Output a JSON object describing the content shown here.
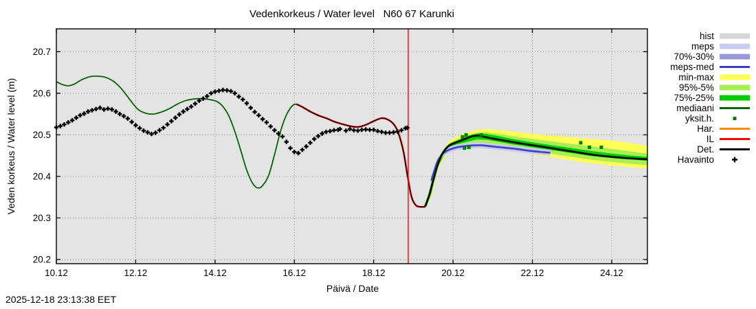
{
  "meta": {
    "timestamp": "2025-12-18 23:13:38 EET"
  },
  "chart_data": {
    "type": "line",
    "title": "Vedenkorkeus / Water level   N60 67 Karunki",
    "xlabel": "Päivä / Date",
    "ylabel": "Veden korkeus / Water level (m)",
    "x_tick_labels": [
      "10.12",
      "12.12",
      "14.12",
      "16.12",
      "18.12",
      "20.12",
      "22.12",
      "24.12"
    ],
    "x_tick_days": [
      0,
      2,
      4,
      6,
      8,
      10,
      12,
      14
    ],
    "x_range_days": [
      0,
      14.9
    ],
    "y_ticks": [
      20.2,
      20.3,
      20.4,
      20.5,
      20.6,
      20.7
    ],
    "ylim": [
      20.19,
      20.755
    ],
    "grid": true,
    "legend_position": "right",
    "now_line_day": 8.87,
    "colors": {
      "plot_bg": "#e4e4e4",
      "grid": "#a6a6a6",
      "border": "#000000",
      "now_line": "#ff0000",
      "hist": "#d6d6d6",
      "meps_band": "#ccccf0",
      "p70_30_band": "#9999d9",
      "meps_med": "#3c3cc8",
      "minmax_band": "#ffff55",
      "p95_5_band": "#a8ee55",
      "p75_25_band": "#00cc00",
      "mediaani": "#006400",
      "yksith": "#008000",
      "har": "#ff8c00",
      "il": "#ff0000",
      "det": "#000000",
      "havainto": "#000000"
    },
    "legend": [
      {
        "label": "hist",
        "kind": "band",
        "color": "#d6d6d6"
      },
      {
        "label": "meps",
        "kind": "band",
        "color": "#ccccf0"
      },
      {
        "label": "70%-30%",
        "kind": "band",
        "color": "#9999d9"
      },
      {
        "label": "meps-med",
        "kind": "line",
        "color": "#3c3cc8"
      },
      {
        "label": "min-max",
        "kind": "band",
        "color": "#ffff55"
      },
      {
        "label": "95%-5%",
        "kind": "band",
        "color": "#a8ee55"
      },
      {
        "label": "75%-25%",
        "kind": "band",
        "color": "#00cc00"
      },
      {
        "label": "mediaani",
        "kind": "line",
        "color": "#006400"
      },
      {
        "label": "yksit.h.",
        "kind": "square",
        "color": "#008000"
      },
      {
        "label": "Har.",
        "kind": "line",
        "color": "#ff8c00"
      },
      {
        "label": "IL",
        "kind": "line",
        "color": "#ff0000"
      },
      {
        "label": "Det.",
        "kind": "line",
        "color": "#000000"
      },
      {
        "label": "Havainto",
        "kind": "plus",
        "color": "#000000"
      }
    ],
    "observations": [
      [
        0,
        20.518
      ],
      [
        0.1,
        20.521
      ],
      [
        0.2,
        20.525
      ],
      [
        0.3,
        20.53
      ],
      [
        0.4,
        20.535
      ],
      [
        0.5,
        20.541
      ],
      [
        0.6,
        20.547
      ],
      [
        0.7,
        20.551
      ],
      [
        0.8,
        20.556
      ],
      [
        0.9,
        20.559
      ],
      [
        1.0,
        20.562
      ],
      [
        1.1,
        20.565
      ],
      [
        1.2,
        20.561
      ],
      [
        1.3,
        20.563
      ],
      [
        1.4,
        20.561
      ],
      [
        1.5,
        20.556
      ],
      [
        1.6,
        20.55
      ],
      [
        1.7,
        20.545
      ],
      [
        1.8,
        20.539
      ],
      [
        1.9,
        20.531
      ],
      [
        2.0,
        20.523
      ],
      [
        2.1,
        20.516
      ],
      [
        2.2,
        20.51
      ],
      [
        2.3,
        20.506
      ],
      [
        2.4,
        20.502
      ],
      [
        2.5,
        20.505
      ],
      [
        2.6,
        20.511
      ],
      [
        2.7,
        20.517
      ],
      [
        2.8,
        20.525
      ],
      [
        2.9,
        20.533
      ],
      [
        3.0,
        20.541
      ],
      [
        3.1,
        20.549
      ],
      [
        3.2,
        20.556
      ],
      [
        3.3,
        20.562
      ],
      [
        3.4,
        20.568
      ],
      [
        3.5,
        20.575
      ],
      [
        3.6,
        20.582
      ],
      [
        3.7,
        20.587
      ],
      [
        3.8,
        20.593
      ],
      [
        3.9,
        20.6
      ],
      [
        4.0,
        20.604
      ],
      [
        4.1,
        20.606
      ],
      [
        4.2,
        20.608
      ],
      [
        4.3,
        20.607
      ],
      [
        4.4,
        20.605
      ],
      [
        4.5,
        20.6
      ],
      [
        4.6,
        20.592
      ],
      [
        4.7,
        20.585
      ],
      [
        4.8,
        20.576
      ],
      [
        4.9,
        20.565
      ],
      [
        5.0,
        20.555
      ],
      [
        5.1,
        20.547
      ],
      [
        5.2,
        20.538
      ],
      [
        5.3,
        20.53
      ],
      [
        5.4,
        20.52
      ],
      [
        5.5,
        20.511
      ],
      [
        5.6,
        20.503
      ],
      [
        5.7,
        20.496
      ],
      [
        5.8,
        20.483
      ],
      [
        5.9,
        20.468
      ],
      [
        6.0,
        20.459
      ],
      [
        6.1,
        20.456
      ],
      [
        6.2,
        20.464
      ],
      [
        6.3,
        20.472
      ],
      [
        6.4,
        20.481
      ],
      [
        6.5,
        20.49
      ],
      [
        6.6,
        20.497
      ],
      [
        6.7,
        20.503
      ],
      [
        6.8,
        20.507
      ],
      [
        6.9,
        20.509
      ],
      [
        7.0,
        20.511
      ],
      [
        7.1,
        20.512
      ],
      [
        7.15,
        20.514
      ],
      [
        7.3,
        20.51
      ],
      [
        7.4,
        20.514
      ],
      [
        7.5,
        20.511
      ],
      [
        7.6,
        20.51
      ],
      [
        7.7,
        20.512
      ],
      [
        7.8,
        20.513
      ],
      [
        7.9,
        20.512
      ],
      [
        8.0,
        20.512
      ],
      [
        8.1,
        20.509
      ],
      [
        8.2,
        20.507
      ],
      [
        8.3,
        20.505
      ],
      [
        8.4,
        20.505
      ],
      [
        8.5,
        20.506
      ],
      [
        8.6,
        20.508
      ],
      [
        8.7,
        20.511
      ],
      [
        8.8,
        20.516
      ],
      [
        8.85,
        20.517
      ]
    ],
    "lines": {
      "model_history_green": [
        [
          0,
          20.628
        ],
        [
          0.15,
          20.621
        ],
        [
          0.3,
          20.618
        ],
        [
          0.45,
          20.622
        ],
        [
          0.65,
          20.633
        ],
        [
          0.85,
          20.64
        ],
        [
          1.05,
          20.641
        ],
        [
          1.25,
          20.638
        ],
        [
          1.45,
          20.628
        ],
        [
          1.65,
          20.61
        ],
        [
          1.85,
          20.585
        ],
        [
          2.05,
          20.562
        ],
        [
          2.25,
          20.552
        ],
        [
          2.45,
          20.55
        ],
        [
          2.65,
          20.555
        ],
        [
          2.85,
          20.563
        ],
        [
          3.05,
          20.574
        ],
        [
          3.25,
          20.582
        ],
        [
          3.45,
          20.586
        ],
        [
          3.65,
          20.587
        ],
        [
          3.85,
          20.585
        ],
        [
          4.05,
          20.58
        ],
        [
          4.2,
          20.568
        ],
        [
          4.35,
          20.545
        ],
        [
          4.5,
          20.508
        ],
        [
          4.65,
          20.462
        ],
        [
          4.8,
          20.415
        ],
        [
          4.95,
          20.383
        ],
        [
          5.08,
          20.372
        ],
        [
          5.2,
          20.378
        ],
        [
          5.35,
          20.402
        ],
        [
          5.5,
          20.452
        ],
        [
          5.65,
          20.508
        ],
        [
          5.8,
          20.548
        ],
        [
          5.95,
          20.57
        ],
        [
          6.05,
          20.574
        ]
      ],
      "model_history_il_det": [
        [
          6.05,
          20.574
        ],
        [
          6.2,
          20.567
        ],
        [
          6.4,
          20.556
        ],
        [
          6.6,
          20.547
        ],
        [
          6.8,
          20.54
        ],
        [
          7.0,
          20.532
        ],
        [
          7.2,
          20.526
        ],
        [
          7.4,
          20.521
        ],
        [
          7.6,
          20.519
        ],
        [
          7.8,
          20.524
        ],
        [
          8.0,
          20.533
        ],
        [
          8.2,
          20.54
        ],
        [
          8.35,
          20.537
        ],
        [
          8.5,
          20.526
        ],
        [
          8.62,
          20.505
        ],
        [
          8.75,
          20.46
        ],
        [
          8.85,
          20.403
        ],
        [
          8.95,
          20.352
        ],
        [
          9.05,
          20.332
        ],
        [
          9.15,
          20.327
        ],
        [
          9.3,
          20.327
        ]
      ],
      "forecast_median": [
        [
          9.3,
          20.328
        ],
        [
          9.4,
          20.355
        ],
        [
          9.5,
          20.39
        ],
        [
          9.6,
          20.424
        ],
        [
          9.7,
          20.449
        ],
        [
          9.8,
          20.464
        ],
        [
          9.9,
          20.474
        ],
        [
          10.05,
          20.481
        ],
        [
          10.2,
          20.486
        ],
        [
          10.35,
          20.492
        ],
        [
          10.5,
          20.497
        ],
        [
          10.65,
          20.498
        ],
        [
          10.8,
          20.495
        ],
        [
          11.0,
          20.491
        ],
        [
          11.3,
          20.486
        ],
        [
          11.6,
          20.481
        ],
        [
          12.0,
          20.475
        ],
        [
          12.4,
          20.469
        ],
        [
          12.8,
          20.463
        ],
        [
          13.2,
          20.457
        ],
        [
          13.6,
          20.451
        ],
        [
          14.0,
          20.447
        ],
        [
          14.4,
          20.444
        ],
        [
          14.9,
          20.441
        ]
      ],
      "meps_med": [
        [
          9.45,
          20.39
        ],
        [
          9.6,
          20.435
        ],
        [
          9.75,
          20.455
        ],
        [
          9.9,
          20.464
        ],
        [
          10.1,
          20.47
        ],
        [
          10.4,
          20.474
        ],
        [
          10.7,
          20.475
        ],
        [
          11.0,
          20.472
        ],
        [
          11.3,
          20.469
        ],
        [
          11.6,
          20.466
        ],
        [
          11.9,
          20.462
        ],
        [
          12.2,
          20.459
        ],
        [
          12.45,
          20.457
        ]
      ]
    },
    "bands": {
      "minmax": [
        [
          9.3,
          20.322,
          20.334
        ],
        [
          9.45,
          20.35,
          20.37
        ],
        [
          9.6,
          20.415,
          20.435
        ],
        [
          9.75,
          20.44,
          20.462
        ],
        [
          9.9,
          20.462,
          20.485
        ],
        [
          10.1,
          20.468,
          20.496
        ],
        [
          10.35,
          20.473,
          20.506
        ],
        [
          10.6,
          20.476,
          20.512
        ],
        [
          10.85,
          20.473,
          20.514
        ],
        [
          11.1,
          20.468,
          20.512
        ],
        [
          11.5,
          20.461,
          20.508
        ],
        [
          12.0,
          20.453,
          20.502
        ],
        [
          12.5,
          20.446,
          20.498
        ],
        [
          13.0,
          20.438,
          20.494
        ],
        [
          13.5,
          20.431,
          20.49
        ],
        [
          14.0,
          20.426,
          20.486
        ],
        [
          14.5,
          20.422,
          20.48
        ],
        [
          14.9,
          20.419,
          20.473
        ]
      ],
      "p95_5": [
        [
          9.3,
          20.324,
          20.332
        ],
        [
          9.45,
          20.355,
          20.366
        ],
        [
          9.6,
          20.419,
          20.43
        ],
        [
          9.75,
          20.444,
          20.457
        ],
        [
          9.9,
          20.466,
          20.48
        ],
        [
          10.1,
          20.472,
          20.489
        ],
        [
          10.35,
          20.477,
          20.499
        ],
        [
          10.6,
          20.481,
          20.505
        ],
        [
          10.85,
          20.479,
          20.506
        ],
        [
          11.1,
          20.475,
          20.503
        ],
        [
          11.5,
          20.468,
          20.497
        ],
        [
          12.0,
          20.461,
          20.49
        ],
        [
          12.5,
          20.454,
          20.484
        ],
        [
          13.0,
          20.447,
          20.478
        ],
        [
          13.5,
          20.44,
          20.472
        ],
        [
          14.0,
          20.435,
          20.466
        ],
        [
          14.5,
          20.43,
          20.46
        ],
        [
          14.9,
          20.427,
          20.455
        ]
      ],
      "p75_25": [
        [
          9.3,
          20.326,
          20.33
        ],
        [
          9.45,
          20.358,
          20.362
        ],
        [
          9.6,
          20.422,
          20.427
        ],
        [
          9.75,
          20.447,
          20.452
        ],
        [
          9.9,
          20.47,
          20.478
        ],
        [
          10.1,
          20.477,
          20.486
        ],
        [
          10.35,
          20.483,
          20.497
        ],
        [
          10.6,
          20.489,
          20.503
        ],
        [
          10.85,
          20.488,
          20.502
        ],
        [
          11.1,
          20.484,
          20.498
        ],
        [
          11.5,
          20.477,
          20.49
        ],
        [
          12.0,
          20.47,
          20.482
        ],
        [
          12.5,
          20.463,
          20.475
        ],
        [
          13.0,
          20.456,
          20.468
        ],
        [
          13.5,
          20.449,
          20.461
        ],
        [
          14.0,
          20.445,
          20.455
        ],
        [
          14.5,
          20.441,
          20.45
        ],
        [
          14.9,
          20.438,
          20.447
        ]
      ],
      "meps": [
        [
          9.45,
          20.38,
          20.398
        ],
        [
          9.6,
          20.428,
          20.443
        ],
        [
          9.75,
          20.448,
          20.462
        ],
        [
          9.9,
          20.457,
          20.471
        ],
        [
          10.1,
          20.463,
          20.477
        ],
        [
          10.4,
          20.467,
          20.481
        ],
        [
          10.7,
          20.468,
          20.482
        ],
        [
          11.0,
          20.465,
          20.479
        ],
        [
          11.3,
          20.462,
          20.476
        ],
        [
          11.6,
          20.459,
          20.473
        ],
        [
          11.9,
          20.455,
          20.469
        ],
        [
          12.2,
          20.452,
          20.466
        ],
        [
          12.45,
          20.45,
          20.464
        ]
      ],
      "p70_30": [
        [
          9.45,
          20.385,
          20.393
        ],
        [
          9.6,
          20.432,
          20.439
        ],
        [
          9.75,
          20.452,
          20.458
        ],
        [
          9.9,
          20.461,
          20.467
        ],
        [
          10.1,
          20.467,
          20.473
        ],
        [
          10.4,
          20.471,
          20.477
        ],
        [
          10.7,
          20.472,
          20.478
        ],
        [
          11.0,
          20.469,
          20.475
        ],
        [
          11.3,
          20.466,
          20.472
        ],
        [
          11.6,
          20.463,
          20.469
        ],
        [
          11.9,
          20.459,
          20.465
        ],
        [
          12.2,
          20.456,
          20.462
        ],
        [
          12.45,
          20.454,
          20.46
        ]
      ]
    },
    "yksith_points": [
      [
        10.24,
        20.495
      ],
      [
        10.33,
        20.5
      ],
      [
        10.29,
        20.468
      ],
      [
        10.4,
        20.47
      ],
      [
        10.71,
        20.5
      ],
      [
        13.22,
        20.481
      ],
      [
        13.44,
        20.47
      ],
      [
        13.74,
        20.47
      ]
    ]
  }
}
